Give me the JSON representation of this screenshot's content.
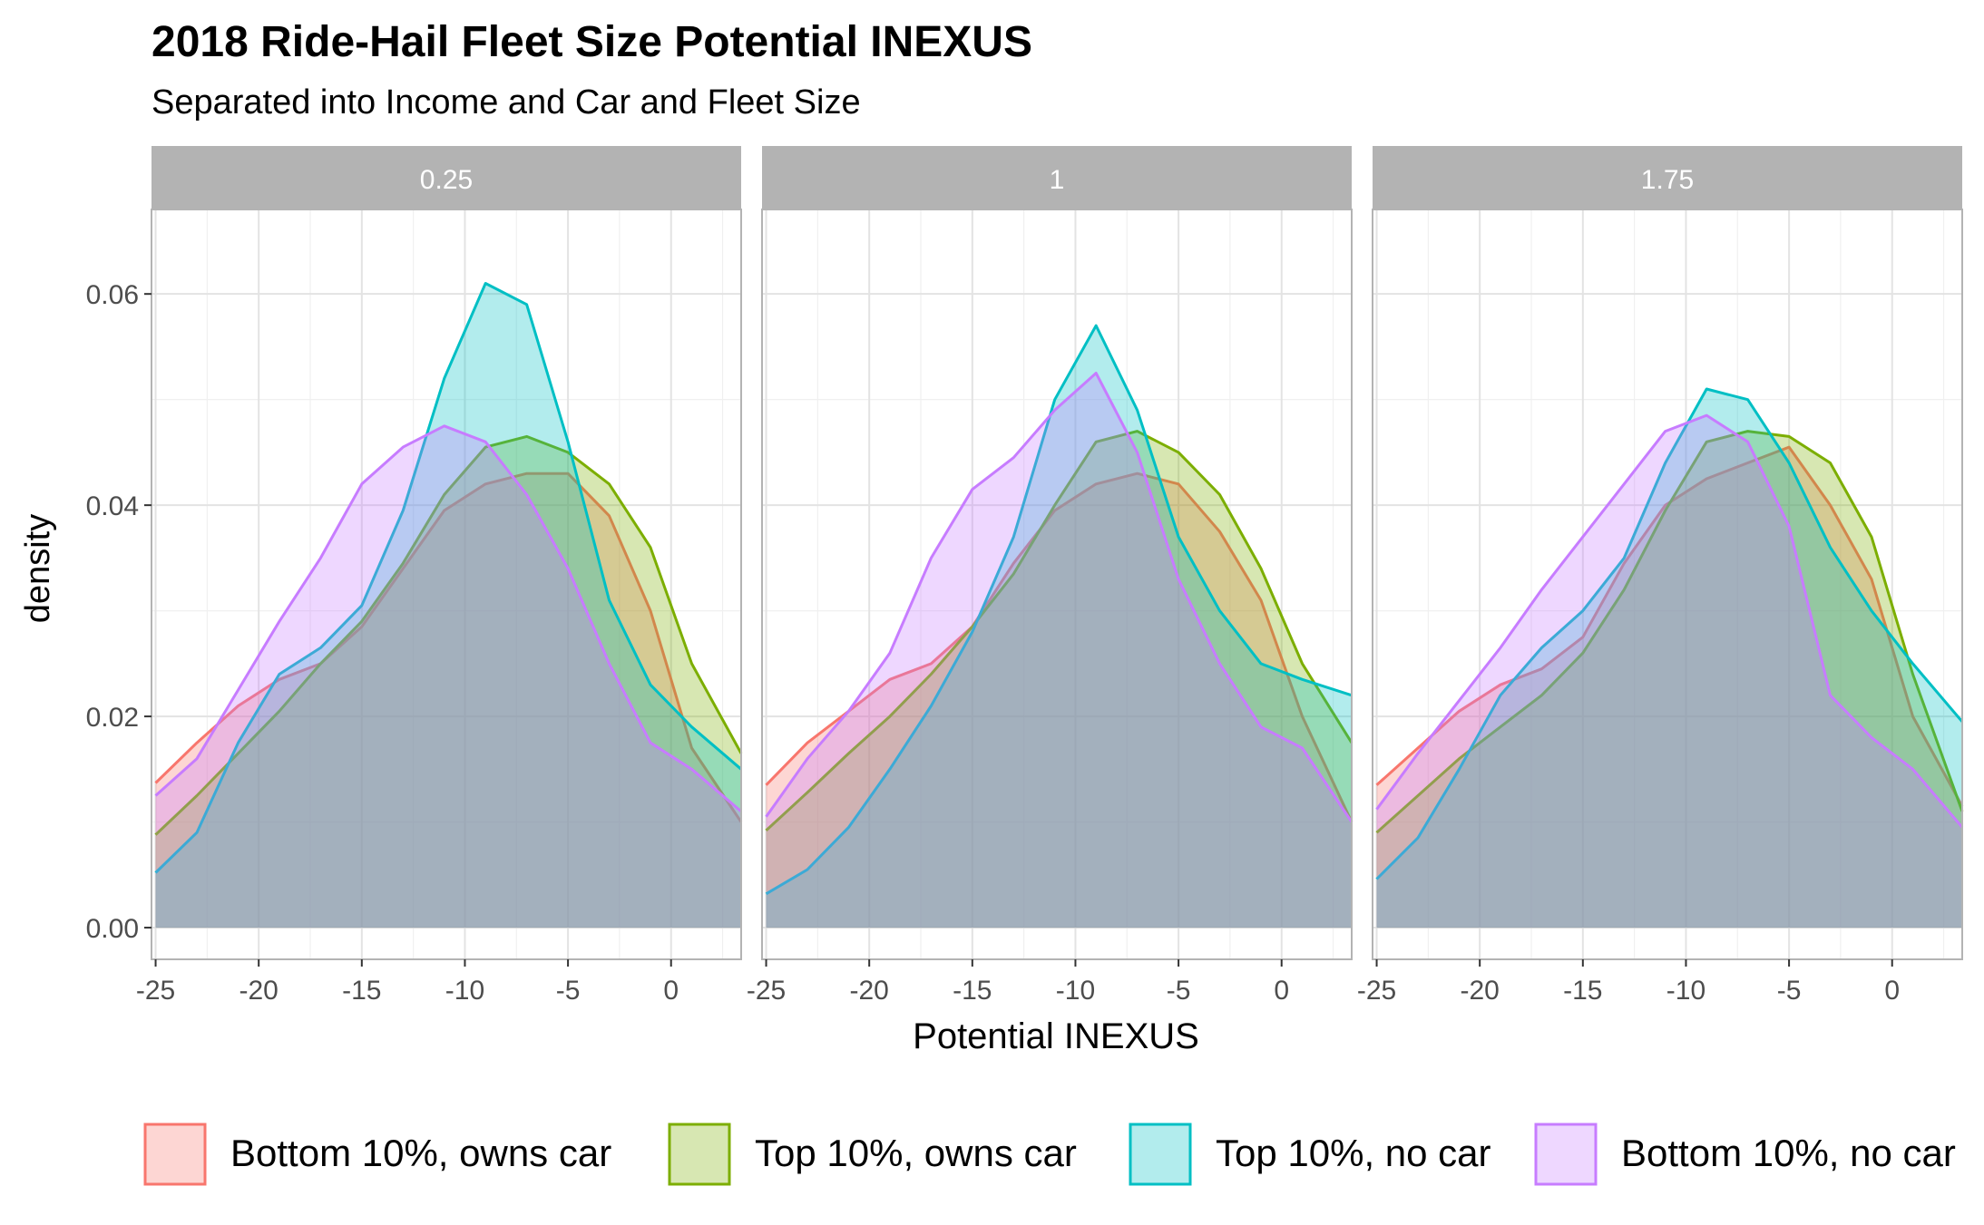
{
  "chart_data": {
    "type": "area",
    "title": "2018 Ride-Hail Fleet Size Potential INEXUS",
    "subtitle": "Separated into Income and Car and Fleet Size",
    "xlabel": "Potential INEXUS",
    "ylabel": "density",
    "xlim": [
      -25.2,
      3.4
    ],
    "ylim": [
      -0.003,
      0.068
    ],
    "x_ticks": [
      -25,
      -20,
      -15,
      -10,
      -5,
      0
    ],
    "x_tick_labels": [
      "-25",
      "-20",
      "-15",
      "-10",
      "-5",
      "0"
    ],
    "y_ticks": [
      0,
      0.02,
      0.04,
      0.06
    ],
    "y_tick_labels": [
      "0.00",
      "0.02",
      "0.04",
      "0.06"
    ],
    "grid": true,
    "legend_position": "bottom",
    "x": [
      -25,
      -23,
      -21,
      -19,
      -17,
      -15,
      -13,
      -11,
      -9,
      -7,
      -5,
      -3,
      -1,
      1,
      3.4
    ],
    "series_meta": [
      {
        "name": "Bottom 10%, owns car",
        "color": "#F8766D"
      },
      {
        "name": "Top 10%, owns car",
        "color": "#7CAE00"
      },
      {
        "name": "Top 10%, no car",
        "color": "#00BFC4"
      },
      {
        "name": "Bottom 10%, no car",
        "color": "#C77CFF"
      }
    ],
    "facets": [
      {
        "label": "0.25",
        "series": [
          {
            "name": "Bottom 10%, owns car",
            "values": [
              0.0137,
              0.0175,
              0.021,
              0.0235,
              0.025,
              0.0285,
              0.034,
              0.0395,
              0.042,
              0.043,
              0.043,
              0.039,
              0.03,
              0.017,
              0.01
            ]
          },
          {
            "name": "Top 10%, owns car",
            "values": [
              0.0088,
              0.0125,
              0.0165,
              0.0205,
              0.025,
              0.029,
              0.0345,
              0.041,
              0.0455,
              0.0465,
              0.045,
              0.042,
              0.036,
              0.025,
              0.0165
            ]
          },
          {
            "name": "Top 10%, no car",
            "values": [
              0.0052,
              0.009,
              0.0175,
              0.024,
              0.0265,
              0.0305,
              0.0395,
              0.052,
              0.061,
              0.059,
              0.046,
              0.031,
              0.023,
              0.019,
              0.015
            ]
          },
          {
            "name": "Bottom 10%, no car",
            "values": [
              0.0125,
              0.016,
              0.0225,
              0.029,
              0.035,
              0.042,
              0.0455,
              0.0475,
              0.046,
              0.041,
              0.034,
              0.025,
              0.0175,
              0.015,
              0.011
            ]
          }
        ]
      },
      {
        "label": "1",
        "series": [
          {
            "name": "Bottom 10%, owns car",
            "values": [
              0.0135,
              0.0175,
              0.0205,
              0.0235,
              0.025,
              0.0285,
              0.0345,
              0.0395,
              0.042,
              0.043,
              0.042,
              0.0375,
              0.031,
              0.02,
              0.01
            ]
          },
          {
            "name": "Top 10%, owns car",
            "values": [
              0.0092,
              0.0128,
              0.0165,
              0.02,
              0.024,
              0.0285,
              0.0335,
              0.04,
              0.046,
              0.047,
              0.045,
              0.041,
              0.034,
              0.025,
              0.0175
            ]
          },
          {
            "name": "Top 10%, no car",
            "values": [
              0.0032,
              0.0055,
              0.0095,
              0.015,
              0.021,
              0.028,
              0.037,
              0.05,
              0.057,
              0.049,
              0.037,
              0.03,
              0.025,
              0.0235,
              0.022
            ]
          },
          {
            "name": "Bottom 10%, no car",
            "values": [
              0.0105,
              0.016,
              0.0205,
              0.026,
              0.035,
              0.0415,
              0.0445,
              0.049,
              0.0525,
              0.045,
              0.033,
              0.025,
              0.019,
              0.017,
              0.01
            ]
          }
        ]
      },
      {
        "label": "1.75",
        "series": [
          {
            "name": "Bottom 10%, owns car",
            "values": [
              0.0135,
              0.017,
              0.0205,
              0.023,
              0.0245,
              0.0275,
              0.0345,
              0.04,
              0.0425,
              0.044,
              0.0455,
              0.04,
              0.033,
              0.02,
              0.0115
            ]
          },
          {
            "name": "Top 10%, owns car",
            "values": [
              0.009,
              0.0125,
              0.016,
              0.019,
              0.022,
              0.026,
              0.032,
              0.0395,
              0.046,
              0.047,
              0.0465,
              0.044,
              0.037,
              0.024,
              0.011
            ]
          },
          {
            "name": "Top 10%, no car",
            "values": [
              0.0046,
              0.0085,
              0.015,
              0.022,
              0.0265,
              0.03,
              0.035,
              0.044,
              0.051,
              0.05,
              0.044,
              0.036,
              0.03,
              0.025,
              0.0195
            ]
          },
          {
            "name": "Bottom 10%, no car",
            "values": [
              0.0112,
              0.0165,
              0.0215,
              0.0265,
              0.032,
              0.037,
              0.042,
              0.047,
              0.0485,
              0.046,
              0.038,
              0.022,
              0.018,
              0.015,
              0.0095
            ]
          }
        ]
      }
    ]
  }
}
